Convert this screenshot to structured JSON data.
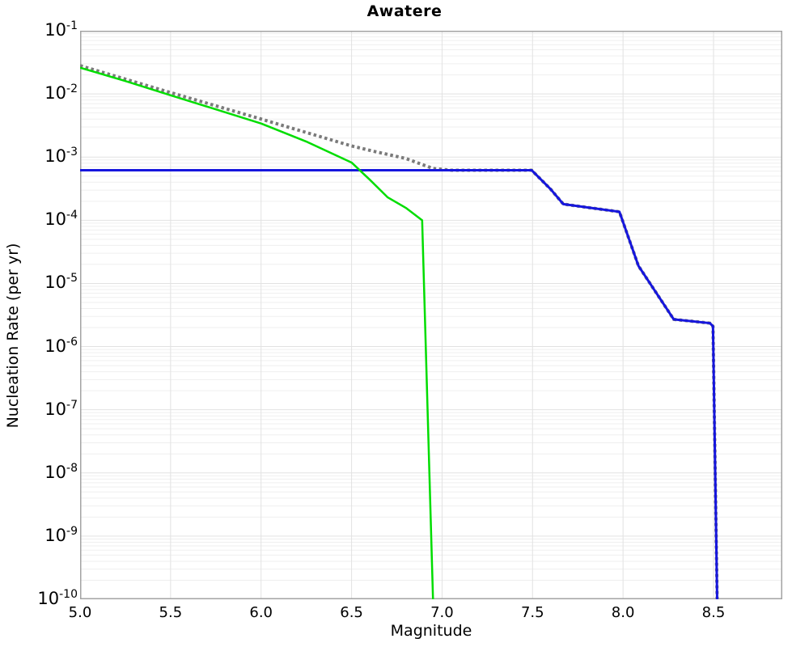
{
  "title": "Awatere",
  "axes": {
    "xlabel": "Magnitude",
    "ylabel": "Nucleation Rate (per yr)"
  },
  "colors": {
    "background": "#ffffff",
    "frame": "#a3a3a3",
    "grid_major": "#e2e2e2",
    "grid_minor": "#efefef",
    "text": "#000000",
    "series_dotted": "#7a7a7a",
    "series_blue": "#1616dd",
    "series_green": "#00dd00"
  },
  "chart_data": {
    "type": "line",
    "title": "Awatere",
    "xlabel": "Magnitude",
    "ylabel": "Nucleation Rate (per yr)",
    "xlim": [
      5.0,
      8.88
    ],
    "ylim": [
      1e-10,
      0.1
    ],
    "x_scale": "linear",
    "y_scale": "log",
    "grid": true,
    "legend": "none",
    "x_ticks": [
      {
        "value": 5.0,
        "label": "5.0"
      },
      {
        "value": 5.5,
        "label": "5.5"
      },
      {
        "value": 6.0,
        "label": "6.0"
      },
      {
        "value": 6.5,
        "label": "6.5"
      },
      {
        "value": 7.0,
        "label": "7.0"
      },
      {
        "value": 7.5,
        "label": "7.5"
      },
      {
        "value": 8.0,
        "label": "8.0"
      },
      {
        "value": 8.5,
        "label": "8.5"
      }
    ],
    "y_tick_exponents": [
      -1,
      -2,
      -3,
      -4,
      -5,
      -6,
      -7,
      -8,
      -9,
      -10
    ],
    "series": [
      {
        "name": "target-gr-dotted",
        "style": "dotted",
        "color": "#7a7a7a",
        "width": 4,
        "points": [
          [
            5.0,
            0.028
          ],
          [
            5.5,
            0.0105
          ],
          [
            6.0,
            0.004
          ],
          [
            6.5,
            0.0015
          ],
          [
            6.62,
            0.00124
          ],
          [
            6.8,
            0.00095
          ],
          [
            6.95,
            0.00066
          ],
          [
            7.05,
            0.00062
          ],
          [
            7.495,
            0.00062
          ],
          [
            7.6,
            0.00031
          ],
          [
            7.67,
            0.00018
          ],
          [
            7.8,
            0.00016
          ],
          [
            7.98,
            0.000136
          ],
          [
            8.085,
            1.9e-05
          ],
          [
            8.28,
            2.7e-06
          ],
          [
            8.48,
            2.35e-06
          ],
          [
            8.497,
            2.1e-06
          ],
          [
            8.52,
            1e-10
          ]
        ]
      },
      {
        "name": "solution-rate-blue",
        "style": "solid",
        "color": "#1616dd",
        "width": 3,
        "points": [
          [
            5.0,
            0.00062
          ],
          [
            7.495,
            0.00062
          ],
          [
            7.6,
            0.00031
          ],
          [
            7.67,
            0.00018
          ],
          [
            7.8,
            0.00016
          ],
          [
            7.98,
            0.000136
          ],
          [
            8.085,
            1.9e-05
          ],
          [
            8.28,
            2.7e-06
          ],
          [
            8.48,
            2.35e-06
          ],
          [
            8.497,
            2.1e-06
          ],
          [
            8.52,
            1e-10
          ]
        ]
      },
      {
        "name": "comparison-rate-green",
        "style": "solid",
        "color": "#00dd00",
        "width": 2.5,
        "points": [
          [
            5.0,
            0.026
          ],
          [
            5.25,
            0.016
          ],
          [
            5.5,
            0.0095
          ],
          [
            5.75,
            0.0057
          ],
          [
            6.0,
            0.0034
          ],
          [
            6.25,
            0.00176
          ],
          [
            6.5,
            0.00082
          ],
          [
            6.6,
            0.00044
          ],
          [
            6.7,
            0.00023
          ],
          [
            6.8,
            0.000157
          ],
          [
            6.89,
            0.0001
          ],
          [
            6.95,
            1e-10
          ]
        ]
      }
    ]
  }
}
